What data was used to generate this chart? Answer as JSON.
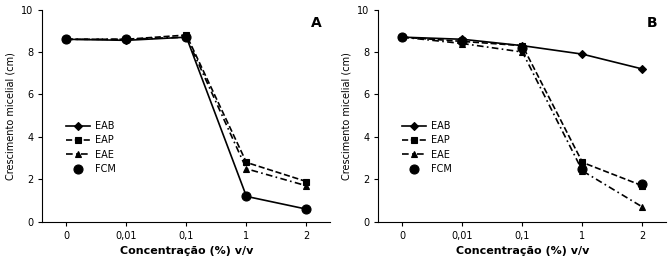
{
  "x_labels": [
    "0",
    "0,01",
    "0,1",
    "1",
    "2"
  ],
  "panel_A": {
    "label": "A",
    "EAB": [
      8.6,
      8.55,
      8.7,
      1.2,
      0.6
    ],
    "EAP": [
      8.6,
      8.6,
      8.8,
      2.8,
      1.9
    ],
    "EAE": [
      8.6,
      8.6,
      8.7,
      2.5,
      1.7
    ],
    "FCM": [
      8.6,
      8.6,
      8.7,
      1.2,
      0.6
    ]
  },
  "panel_B": {
    "label": "B",
    "EAB": [
      8.7,
      8.6,
      8.3,
      7.9,
      7.2
    ],
    "EAP": [
      8.7,
      8.5,
      8.3,
      2.8,
      1.7
    ],
    "EAE": [
      8.7,
      8.4,
      8.0,
      2.4,
      0.7
    ],
    "FCM": [
      8.7,
      8.5,
      8.2,
      2.5,
      1.8
    ]
  },
  "ylabel": "Crescimento micelial (cm)",
  "xlabel": "Concentração (%) v/v",
  "ylim": [
    0,
    10
  ],
  "yticks": [
    0,
    2,
    4,
    6,
    8,
    10
  ],
  "legend_labels": [
    "EAB",
    "EAP",
    "EAE",
    "FCM"
  ],
  "fontsize": 8
}
